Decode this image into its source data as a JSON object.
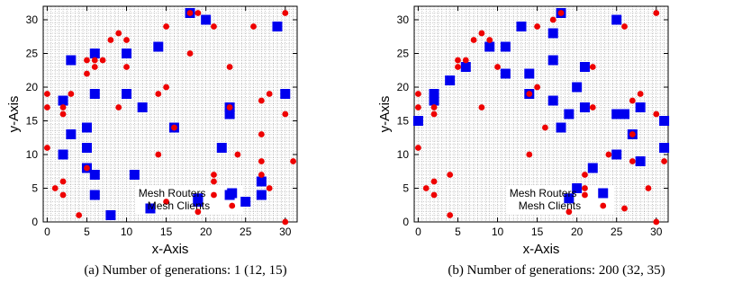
{
  "chart_data": [
    {
      "type": "scatter",
      "caption": "(a) Number of generations: 1 (12, 15)",
      "xlabel": "x-Axis",
      "ylabel": "y-Axis",
      "xlim": [
        -0.5,
        31.5
      ],
      "ylim": [
        0,
        32
      ],
      "xticks": [
        0,
        5,
        10,
        15,
        20,
        25,
        30
      ],
      "yticks": [
        0,
        5,
        10,
        15,
        20,
        25,
        30
      ],
      "grid": true,
      "legend_position": "bottom-center",
      "series": [
        {
          "name": "Mesh Routers",
          "marker": "square",
          "color": "#0000ee",
          "points": [
            [
              2,
              18
            ],
            [
              6,
              25
            ],
            [
              10,
              25
            ],
            [
              14,
              26
            ],
            [
              18,
              31
            ],
            [
              20,
              30
            ],
            [
              3,
              24
            ],
            [
              6,
              19
            ],
            [
              10,
              19
            ],
            [
              3,
              13
            ],
            [
              5,
              14
            ],
            [
              12,
              17
            ],
            [
              5,
              11
            ],
            [
              30,
              19
            ],
            [
              23,
              17
            ],
            [
              23,
              16
            ],
            [
              16,
              14
            ],
            [
              22,
              11
            ],
            [
              5,
              8
            ],
            [
              6,
              7
            ],
            [
              11,
              7
            ],
            [
              2,
              10
            ],
            [
              6,
              4
            ],
            [
              8,
              1
            ],
            [
              13,
              2
            ],
            [
              19,
              3
            ],
            [
              19,
              3.5
            ],
            [
              23,
              4
            ],
            [
              25,
              3
            ],
            [
              27,
              4
            ],
            [
              27,
              6
            ],
            [
              29,
              29
            ]
          ]
        },
        {
          "name": "Mesh Clients",
          "color": "#ee0000",
          "marker": "circle",
          "points": [
            [
              0,
              19
            ],
            [
              0,
              17
            ],
            [
              2,
              17
            ],
            [
              3,
              19
            ],
            [
              2,
              16
            ],
            [
              0,
              11
            ],
            [
              1,
              5
            ],
            [
              2,
              4
            ],
            [
              2,
              6
            ],
            [
              4,
              1
            ],
            [
              5,
              8
            ],
            [
              5,
              24
            ],
            [
              5,
              22
            ],
            [
              6,
              23
            ],
            [
              6,
              24
            ],
            [
              7,
              24
            ],
            [
              8,
              27
            ],
            [
              9,
              28
            ],
            [
              10,
              27
            ],
            [
              10,
              23
            ],
            [
              9,
              17
            ],
            [
              14,
              19
            ],
            [
              15,
              20
            ],
            [
              15,
              29
            ],
            [
              18,
              25
            ],
            [
              18,
              31
            ],
            [
              19,
              31
            ],
            [
              21,
              29
            ],
            [
              23,
              23
            ],
            [
              23,
              17
            ],
            [
              16,
              14
            ],
            [
              14,
              10
            ],
            [
              15,
              3
            ],
            [
              19,
              1.5
            ],
            [
              21,
              6
            ],
            [
              21,
              7
            ],
            [
              21,
              4
            ],
            [
              24,
              10
            ],
            [
              26,
              29
            ],
            [
              27,
              18
            ],
            [
              28,
              19
            ],
            [
              27,
              13
            ],
            [
              27,
              9
            ],
            [
              27,
              7
            ],
            [
              28,
              5
            ],
            [
              30,
              31
            ],
            [
              30,
              16
            ],
            [
              31,
              9
            ],
            [
              30,
              0
            ]
          ]
        }
      ]
    },
    {
      "type": "scatter",
      "caption": "(b) Number of generations: 200 (32, 35)",
      "xlabel": "x-Axis",
      "ylabel": "y-Axis",
      "xlim": [
        -0.5,
        31.5
      ],
      "ylim": [
        0,
        32
      ],
      "xticks": [
        0,
        5,
        10,
        15,
        20,
        25,
        30
      ],
      "yticks": [
        0,
        5,
        10,
        15,
        20,
        25,
        30
      ],
      "grid": true,
      "legend_position": "bottom-center",
      "series": [
        {
          "name": "Mesh Routers",
          "color": "#0000ee",
          "marker": "square",
          "points": [
            [
              0,
              15
            ],
            [
              2,
              18
            ],
            [
              2,
              19
            ],
            [
              4,
              21
            ],
            [
              6,
              23
            ],
            [
              9,
              26
            ],
            [
              11,
              26
            ],
            [
              11,
              22
            ],
            [
              13,
              29
            ],
            [
              14,
              22
            ],
            [
              14,
              19
            ],
            [
              17,
              28
            ],
            [
              17,
              24
            ],
            [
              18,
              31
            ],
            [
              17,
              18
            ],
            [
              18,
              14
            ],
            [
              19,
              16
            ],
            [
              20,
              20
            ],
            [
              21,
              23
            ],
            [
              21,
              17
            ],
            [
              22,
              8
            ],
            [
              20,
              5
            ],
            [
              19,
              3.5
            ],
            [
              25,
              30
            ],
            [
              25,
              16
            ],
            [
              26,
              16
            ],
            [
              25,
              10
            ],
            [
              27,
              13
            ],
            [
              28,
              17
            ],
            [
              28,
              9
            ],
            [
              31,
              15
            ],
            [
              31,
              11
            ]
          ]
        },
        {
          "name": "Mesh Clients",
          "color": "#ee0000",
          "marker": "circle",
          "points": [
            [
              0,
              19
            ],
            [
              0,
              17
            ],
            [
              1,
              5
            ],
            [
              2,
              17
            ],
            [
              2,
              16
            ],
            [
              0,
              11
            ],
            [
              2,
              6
            ],
            [
              2,
              4
            ],
            [
              4,
              1
            ],
            [
              4,
              7
            ],
            [
              5,
              24
            ],
            [
              5,
              23
            ],
            [
              6,
              24
            ],
            [
              7,
              27
            ],
            [
              8,
              28
            ],
            [
              8,
              17
            ],
            [
              9,
              27
            ],
            [
              10,
              23
            ],
            [
              14,
              19
            ],
            [
              14,
              10
            ],
            [
              15,
              20
            ],
            [
              15,
              29
            ],
            [
              16,
              14
            ],
            [
              17,
              30
            ],
            [
              18,
              31
            ],
            [
              19,
              1.5
            ],
            [
              21,
              7
            ],
            [
              21,
              5
            ],
            [
              21,
              4
            ],
            [
              22,
              23
            ],
            [
              22,
              17
            ],
            [
              24,
              10
            ],
            [
              26,
              29
            ],
            [
              26,
              2
            ],
            [
              27,
              18
            ],
            [
              28,
              19
            ],
            [
              27,
              13
            ],
            [
              27,
              9
            ],
            [
              29,
              5
            ],
            [
              30,
              31
            ],
            [
              30,
              16
            ],
            [
              31,
              9
            ],
            [
              30,
              0
            ]
          ]
        }
      ]
    }
  ]
}
